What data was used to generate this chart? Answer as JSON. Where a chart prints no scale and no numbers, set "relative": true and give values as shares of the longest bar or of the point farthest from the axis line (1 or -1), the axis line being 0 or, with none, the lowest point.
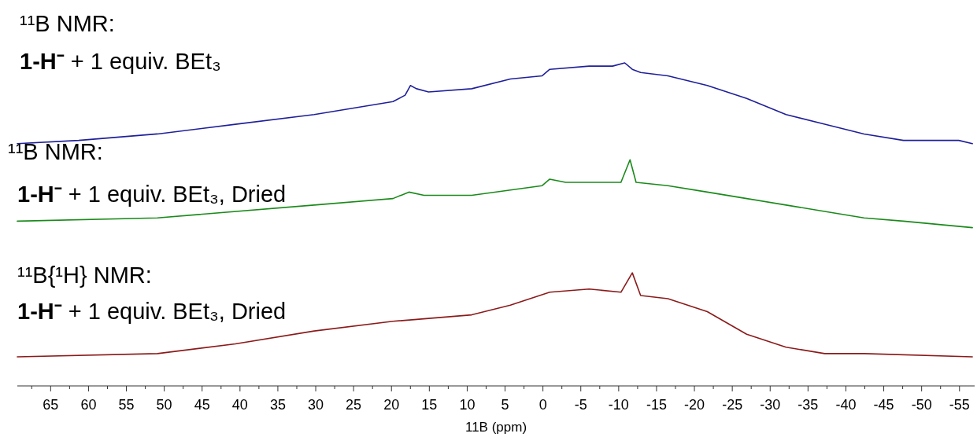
{
  "chart_data": {
    "type": "line",
    "relative": true,
    "xlabel": "11B (ppm)",
    "xlim": [
      69.4,
      -57
    ],
    "xticks": [
      {
        "value": 67.5,
        "label": null
      },
      65,
      {
        "value": 62.5,
        "label": null
      },
      60,
      {
        "value": 57.5,
        "label": null
      },
      55,
      {
        "value": 52.5,
        "label": null
      },
      50,
      {
        "value": 47.5,
        "label": null
      },
      45,
      {
        "value": 42.5,
        "label": null
      },
      40,
      {
        "value": 37.5,
        "label": null
      },
      35,
      {
        "value": 32.5,
        "label": null
      },
      30,
      {
        "value": 27.5,
        "label": null
      },
      25,
      {
        "value": 22.5,
        "label": null
      },
      20,
      {
        "value": 17.5,
        "label": null
      },
      15,
      {
        "value": 12.5,
        "label": null
      },
      10,
      {
        "value": 7.5,
        "label": null
      },
      5,
      {
        "value": 2.5,
        "label": null
      },
      0,
      {
        "value": -2.5,
        "label": null
      },
      -5,
      {
        "value": -7.5,
        "label": null
      },
      -10,
      {
        "value": -12.5,
        "label": null
      },
      -15,
      {
        "value": -17.5,
        "label": null
      },
      -20,
      {
        "value": -22.5,
        "label": null
      },
      -25,
      {
        "value": -27.5,
        "label": null
      },
      -30,
      {
        "value": -32.5,
        "label": null
      },
      -35,
      {
        "value": -37.5,
        "label": null
      },
      -40,
      {
        "value": -42.5,
        "label": null
      },
      -45,
      {
        "value": -47.5,
        "label": null
      },
      -50,
      {
        "value": -52.5,
        "label": null
      },
      -55
    ],
    "tick_labels": "x",
    "grid": false,
    "line_style": "solid",
    "annotations": [
      "¹¹B NMR:",
      "1-H⁻ + 1 equiv. BEt₃",
      "¹¹B NMR:",
      "1-H⁻ + 1 equiv. BEt₃, Dried",
      "¹¹B{¹H} NMR:",
      "1-H⁻ + 1 equiv. BEt₃, Dried"
    ],
    "series": [
      {
        "color": "#1f1f9a",
        "x": [
          69.4,
          61.3,
          50.9,
          40.6,
          30.2,
          25,
          19.8,
          18.2,
          17.5,
          16.7,
          15.1,
          9.4,
          4.3,
          0.1,
          -0.9,
          -6.1,
          -9.2,
          -10.8,
          -11.8,
          -12.9,
          -16.5,
          -21.7,
          -26.9,
          -32.1,
          -37.2,
          -42.4,
          -47.6,
          -52.8,
          -54.9,
          -56.7
        ],
        "values": [
          0.75,
          0.76,
          0.78,
          0.81,
          0.84,
          0.86,
          0.88,
          0.9,
          0.93,
          0.92,
          0.91,
          0.92,
          0.95,
          0.96,
          0.98,
          0.99,
          0.99,
          1,
          0.98,
          0.97,
          0.96,
          0.93,
          0.89,
          0.84,
          0.81,
          0.78,
          0.76,
          0.76,
          0.76,
          0.75
        ]
      },
      {
        "color": "#1a8a1a",
        "x": [
          69.4,
          50.9,
          30.2,
          19.8,
          17.7,
          15.7,
          9.4,
          0.1,
          -0.9,
          -3.0,
          -10.3,
          -11.5,
          -12.3,
          -16.5,
          -21.7,
          -26.9,
          -32.1,
          -37.2,
          -42.4,
          -47.6,
          -56.7
        ],
        "values": [
          0.51,
          0.52,
          0.56,
          0.58,
          0.6,
          0.59,
          0.59,
          0.62,
          0.64,
          0.63,
          0.63,
          0.7,
          0.63,
          0.62,
          0.6,
          0.58,
          0.56,
          0.54,
          0.52,
          0.51,
          0.49
        ]
      },
      {
        "color": "#8b1a1a",
        "x": [
          69.4,
          50.9,
          40.6,
          30.2,
          19.8,
          9.4,
          4.3,
          -0.9,
          -6.1,
          -10.3,
          -11.8,
          -12.9,
          -16.5,
          -21.7,
          -26.9,
          -32.1,
          -37.2,
          -42.4,
          -56.7
        ],
        "values": [
          0.09,
          0.1,
          0.13,
          0.17,
          0.2,
          0.22,
          0.25,
          0.29,
          0.3,
          0.29,
          0.35,
          0.28,
          0.27,
          0.23,
          0.16,
          0.12,
          0.1,
          0.1,
          0.09
        ]
      }
    ]
  }
}
